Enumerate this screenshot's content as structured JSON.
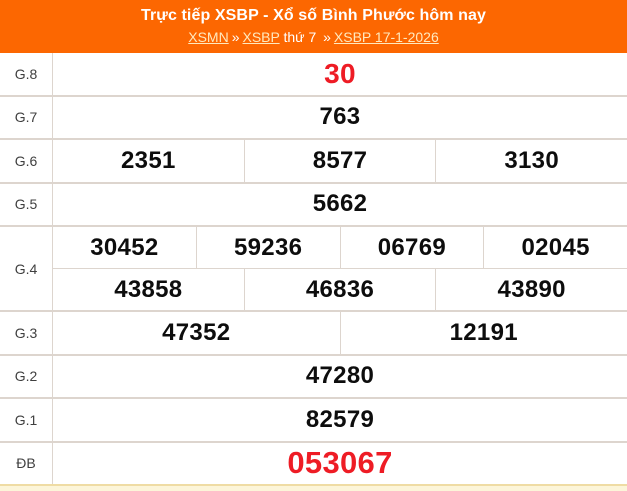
{
  "header": {
    "title": "Trực tiếp XSBP - Xổ số Bình Phước hôm nay",
    "breadcrumb": {
      "xsmn": "XSMN",
      "sep1": "»",
      "xsbp": "XSBP",
      "weekday": "thứ 7",
      "sep2": "»",
      "date_link": "XSBP 17-1-2026"
    }
  },
  "colors": {
    "accent_orange": "#FC6701",
    "highlight_red": "#EE1C25",
    "number_black": "#0D0D0D",
    "border_gray": "#DDD5CE",
    "next_section_cream": "#FCF5D9",
    "next_section_tan": "#EFDCA4",
    "breadcrumb_link": "#FFE9BE"
  },
  "results": {
    "rows": [
      {
        "label": "G.8",
        "cells": [
          "30"
        ],
        "style": "red"
      },
      {
        "label": "G.7",
        "cells": [
          "763"
        ]
      },
      {
        "label": "G.6",
        "cells": [
          "2351",
          "8577",
          "3130"
        ]
      },
      {
        "label": "G.5",
        "cells": [
          "5662"
        ]
      },
      {
        "label": "G.4",
        "sub_rows": [
          [
            "30452",
            "59236",
            "06769",
            "02045"
          ],
          [
            "43858",
            "46836",
            "43890"
          ]
        ]
      },
      {
        "label": "G.3",
        "cells": [
          "47352",
          "12191"
        ]
      },
      {
        "label": "G.2",
        "cells": [
          "47280"
        ]
      },
      {
        "label": "G.1",
        "cells": [
          "82579"
        ]
      },
      {
        "label": "ĐB",
        "cells": [
          "053067"
        ],
        "style": "red-big"
      }
    ]
  }
}
